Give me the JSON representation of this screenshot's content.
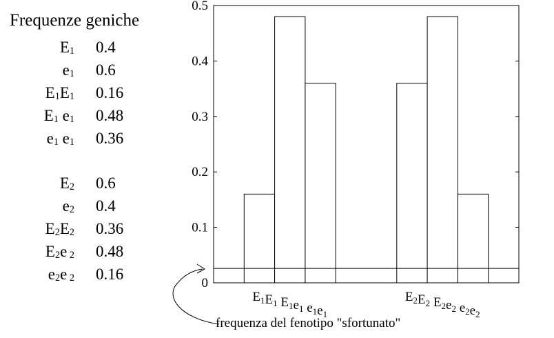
{
  "legend": {
    "title": "Frequenze geniche",
    "rows": [
      {
        "base": "E",
        "sub": "1",
        "value": "0.4"
      },
      {
        "base": "e",
        "sub": "1",
        "value": "0.6"
      },
      {
        "base": "E",
        "sub": "1",
        "base2": "E",
        "sub2": "1",
        "value": "0.16"
      },
      {
        "base": "E",
        "sub": "1",
        "base2": " e",
        "sub2": "1",
        "value": "0.48"
      },
      {
        "base": "e",
        "sub": "1",
        "base2": " e",
        "sub2": "1",
        "value": "0.36"
      },
      {
        "base": "E",
        "sub": "2",
        "value": "0.6"
      },
      {
        "base": "e",
        "sub": "2",
        "value": "0.4"
      },
      {
        "base": "E",
        "sub": "2",
        "base2": "E",
        "sub2": "2",
        "value": "0.36"
      },
      {
        "base": "E",
        "sub": "2",
        "base2": "e",
        "sub2": " 2",
        "value": "0.48"
      },
      {
        "base": "e",
        "sub": "2",
        "base2": "e",
        "sub2": " 2",
        "value": "0.16"
      }
    ]
  },
  "annotation": "frequenza del fenotipo \"sfortunato\"",
  "chart_data": {
    "type": "bar",
    "title": "",
    "xlabel": "",
    "ylabel": "",
    "ylim": [
      0,
      0.5
    ],
    "yticks": [
      "0",
      "0.1",
      "0.2",
      "0.3",
      "0.4",
      "0.5"
    ],
    "categories": [
      "E1E1",
      "E1e1",
      "e1e1",
      "E2E2",
      "E2e2",
      "e2e2"
    ],
    "values": [
      0.16,
      0.48,
      0.36,
      0.36,
      0.48,
      0.16
    ],
    "bar_slots": [
      1,
      2,
      3,
      6,
      7,
      8
    ],
    "slot_count": 10,
    "threshold": 0.026,
    "xtick_groups": [
      [
        {
          "b": "E",
          "s": "1"
        },
        {
          "b": "E",
          "s": "1"
        },
        {
          "b": " E",
          "s": "1"
        },
        {
          "b": "e",
          "s": "1"
        },
        {
          "b": " e",
          "s": "1"
        },
        {
          "b": "e",
          "s": "1"
        }
      ],
      [
        {
          "b": "E",
          "s": "2"
        },
        {
          "b": "E",
          "s": "2"
        },
        {
          "b": " E",
          "s": "2"
        },
        {
          "b": "e",
          "s": "2"
        },
        {
          "b": " e",
          "s": "2"
        },
        {
          "b": "e",
          "s": "2"
        }
      ]
    ],
    "grid": false
  }
}
